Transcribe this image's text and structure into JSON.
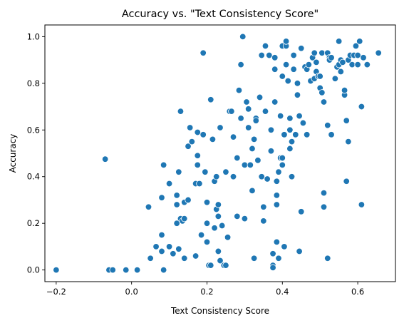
{
  "chart_data": {
    "type": "scatter",
    "title": "Accuracy vs. \"Text Consistency Score\"",
    "xlabel": "Text Consistency Score",
    "ylabel": "Accuracy",
    "xlim": [
      -0.23,
      0.7
    ],
    "ylim": [
      -0.05,
      1.05
    ],
    "xticks": [
      -0.2,
      0.0,
      0.2,
      0.4,
      0.6
    ],
    "xtick_labels": [
      "−0.2",
      "0.0",
      "0.2",
      "0.4",
      "0.6"
    ],
    "yticks": [
      0.0,
      0.2,
      0.4,
      0.6,
      0.8,
      1.0
    ],
    "ytick_labels": [
      "0.0",
      "0.2",
      "0.4",
      "0.6",
      "0.8",
      "1.0"
    ],
    "grid": false,
    "legend": "none",
    "marker_color": "#1f77b4",
    "points": [
      [
        -0.2,
        0.0
      ],
      [
        -0.06,
        0.0
      ],
      [
        -0.05,
        0.0
      ],
      [
        -0.015,
        0.0
      ],
      [
        0.015,
        0.0
      ],
      [
        -0.07,
        0.475
      ],
      [
        0.045,
        0.27
      ],
      [
        0.05,
        0.05
      ],
      [
        0.065,
        0.1
      ],
      [
        0.08,
        0.15
      ],
      [
        0.08,
        0.08
      ],
      [
        0.085,
        0.0
      ],
      [
        0.085,
        0.45
      ],
      [
        0.08,
        0.31
      ],
      [
        0.1,
        0.1
      ],
      [
        0.1,
        0.37
      ],
      [
        0.11,
        0.07
      ],
      [
        0.12,
        0.2
      ],
      [
        0.12,
        0.28
      ],
      [
        0.12,
        0.32
      ],
      [
        0.125,
        0.09
      ],
      [
        0.125,
        0.42
      ],
      [
        0.13,
        0.22
      ],
      [
        0.135,
        0.21
      ],
      [
        0.13,
        0.68
      ],
      [
        0.14,
        0.22
      ],
      [
        0.14,
        0.05
      ],
      [
        0.14,
        0.29
      ],
      [
        0.15,
        0.3
      ],
      [
        0.15,
        0.53
      ],
      [
        0.155,
        0.61
      ],
      [
        0.16,
        0.55
      ],
      [
        0.17,
        0.06
      ],
      [
        0.17,
        0.37
      ],
      [
        0.175,
        0.45
      ],
      [
        0.18,
        0.37
      ],
      [
        0.175,
        0.59
      ],
      [
        0.175,
        0.49
      ],
      [
        0.185,
        0.15
      ],
      [
        0.19,
        0.58
      ],
      [
        0.19,
        0.93
      ],
      [
        0.195,
        0.42
      ],
      [
        0.2,
        0.29
      ],
      [
        0.2,
        0.2
      ],
      [
        0.2,
        0.12
      ],
      [
        0.205,
        0.02
      ],
      [
        0.21,
        0.02
      ],
      [
        0.21,
        0.73
      ],
      [
        0.215,
        0.56
      ],
      [
        0.22,
        0.38
      ],
      [
        0.22,
        0.18
      ],
      [
        0.225,
        0.4
      ],
      [
        0.225,
        0.26
      ],
      [
        0.23,
        0.28
      ],
      [
        0.23,
        0.23
      ],
      [
        0.23,
        0.08
      ],
      [
        0.235,
        0.04
      ],
      [
        0.235,
        0.61
      ],
      [
        0.24,
        0.19
      ],
      [
        0.245,
        0.02
      ],
      [
        0.25,
        0.42
      ],
      [
        0.25,
        0.02
      ],
      [
        0.255,
        0.14
      ],
      [
        0.26,
        0.68
      ],
      [
        0.265,
        0.68
      ],
      [
        0.27,
        0.57
      ],
      [
        0.27,
        0.4
      ],
      [
        0.28,
        0.48
      ],
      [
        0.28,
        0.23
      ],
      [
        0.285,
        0.77
      ],
      [
        0.29,
        0.88
      ],
      [
        0.29,
        0.65
      ],
      [
        0.295,
        1.0
      ],
      [
        0.3,
        0.22
      ],
      [
        0.3,
        0.45
      ],
      [
        0.305,
        0.72
      ],
      [
        0.31,
        0.69
      ],
      [
        0.31,
        0.61
      ],
      [
        0.315,
        0.45
      ],
      [
        0.32,
        0.34
      ],
      [
        0.32,
        0.52
      ],
      [
        0.325,
        0.56
      ],
      [
        0.325,
        0.05
      ],
      [
        0.33,
        0.65
      ],
      [
        0.33,
        0.64
      ],
      [
        0.335,
        0.47
      ],
      [
        0.34,
        0.74
      ],
      [
        0.345,
        0.92
      ],
      [
        0.345,
        0.4
      ],
      [
        0.35,
        0.27
      ],
      [
        0.35,
        0.21
      ],
      [
        0.355,
        0.96
      ],
      [
        0.355,
        0.68
      ],
      [
        0.36,
        0.39
      ],
      [
        0.365,
        0.92
      ],
      [
        0.37,
        0.6
      ],
      [
        0.37,
        0.51
      ],
      [
        0.375,
        0.07
      ],
      [
        0.375,
        0.02
      ],
      [
        0.375,
        0.01
      ],
      [
        0.38,
        0.91
      ],
      [
        0.38,
        0.86
      ],
      [
        0.38,
        0.72
      ],
      [
        0.385,
        0.32
      ],
      [
        0.385,
        0.38
      ],
      [
        0.385,
        0.28
      ],
      [
        0.385,
        0.12
      ],
      [
        0.39,
        0.42
      ],
      [
        0.39,
        0.05
      ],
      [
        0.395,
        0.66
      ],
      [
        0.395,
        0.48
      ],
      [
        0.4,
        0.96
      ],
      [
        0.4,
        0.83
      ],
      [
        0.4,
        0.48
      ],
      [
        0.4,
        0.45
      ],
      [
        0.405,
        0.1
      ],
      [
        0.405,
        0.58
      ],
      [
        0.41,
        0.96
      ],
      [
        0.41,
        0.98
      ],
      [
        0.41,
        0.88
      ],
      [
        0.415,
        0.81
      ],
      [
        0.42,
        0.65
      ],
      [
        0.42,
        0.6
      ],
      [
        0.42,
        0.52
      ],
      [
        0.425,
        0.4
      ],
      [
        0.425,
        0.55
      ],
      [
        0.43,
        0.86
      ],
      [
        0.43,
        0.92
      ],
      [
        0.435,
        0.58
      ],
      [
        0.44,
        0.8
      ],
      [
        0.44,
        0.75
      ],
      [
        0.445,
        0.66
      ],
      [
        0.445,
        0.08
      ],
      [
        0.45,
        0.95
      ],
      [
        0.45,
        0.25
      ],
      [
        0.455,
        0.63
      ],
      [
        0.46,
        0.87
      ],
      [
        0.465,
        0.86
      ],
      [
        0.465,
        0.58
      ],
      [
        0.47,
        0.88
      ],
      [
        0.475,
        0.81
      ],
      [
        0.48,
        0.91
      ],
      [
        0.485,
        0.93
      ],
      [
        0.485,
        0.82
      ],
      [
        0.49,
        0.89
      ],
      [
        0.49,
        0.85
      ],
      [
        0.495,
        0.83
      ],
      [
        0.5,
        0.78
      ],
      [
        0.5,
        0.83
      ],
      [
        0.505,
        0.76
      ],
      [
        0.505,
        0.93
      ],
      [
        0.51,
        0.72
      ],
      [
        0.51,
        0.33
      ],
      [
        0.51,
        0.27
      ],
      [
        0.52,
        0.62
      ],
      [
        0.52,
        0.93
      ],
      [
        0.52,
        0.05
      ],
      [
        0.525,
        0.91
      ],
      [
        0.525,
        0.9
      ],
      [
        0.53,
        0.91
      ],
      [
        0.53,
        0.58
      ],
      [
        0.54,
        0.82
      ],
      [
        0.545,
        0.87
      ],
      [
        0.55,
        0.88
      ],
      [
        0.55,
        0.98
      ],
      [
        0.555,
        0.85
      ],
      [
        0.555,
        0.9
      ],
      [
        0.56,
        0.89
      ],
      [
        0.565,
        0.75
      ],
      [
        0.565,
        0.77
      ],
      [
        0.57,
        0.64
      ],
      [
        0.57,
        0.38
      ],
      [
        0.575,
        0.55
      ],
      [
        0.575,
        0.9
      ],
      [
        0.58,
        0.92
      ],
      [
        0.585,
        0.88
      ],
      [
        0.59,
        0.92
      ],
      [
        0.595,
        0.96
      ],
      [
        0.6,
        0.92
      ],
      [
        0.6,
        0.88
      ],
      [
        0.605,
        0.98
      ],
      [
        0.61,
        0.7
      ],
      [
        0.61,
        0.28
      ],
      [
        0.615,
        0.91
      ],
      [
        0.625,
        0.88
      ],
      [
        0.655,
        0.93
      ]
    ]
  }
}
